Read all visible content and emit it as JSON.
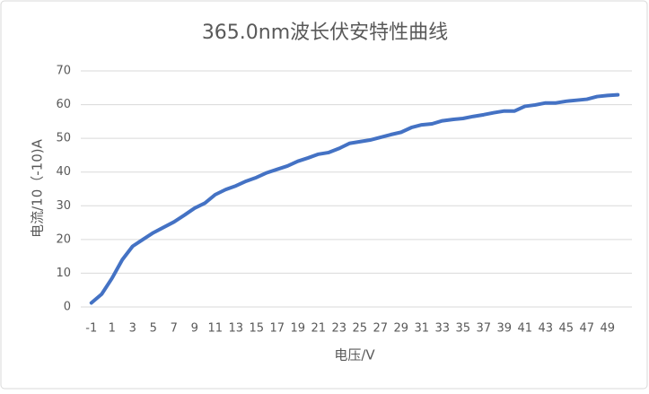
{
  "chart_data": {
    "type": "line",
    "title": "365.0nm波长伏安特性曲线",
    "x_label": "电压/V",
    "y_label": "电流/10（-10)A",
    "categories": [
      "-1",
      null,
      "1",
      null,
      "3",
      null,
      "5",
      null,
      "7",
      null,
      "9",
      null,
      "11",
      null,
      "13",
      null,
      "15",
      null,
      "17",
      null,
      "19",
      null,
      "21",
      null,
      "23",
      null,
      "25",
      null,
      "27",
      null,
      "29",
      null,
      "31",
      null,
      "33",
      null,
      "35",
      null,
      "37",
      null,
      "39",
      null,
      "41",
      null,
      "43",
      null,
      "45",
      null,
      "47",
      null,
      "49",
      null
    ],
    "series": [
      {
        "name": "365.0nm",
        "color": "#4472c4",
        "values": [
          1.2,
          3.8,
          8.5,
          14,
          18,
          20,
          22,
          23.6,
          25.2,
          27.2,
          29.3,
          30.8,
          33.3,
          34.8,
          35.9,
          37.3,
          38.4,
          39.8,
          40.8,
          41.8,
          43.2,
          44.2,
          45.3,
          45.8,
          47,
          48.5,
          49,
          49.5,
          50.3,
          51.1,
          51.8,
          53.2,
          54,
          54.3,
          55.2,
          55.6,
          55.9,
          56.5,
          57,
          57.6,
          58.1,
          58.1,
          59.5,
          59.9,
          60.5,
          60.5,
          61,
          61.3,
          61.6,
          62.4,
          62.7,
          62.9
        ]
      }
    ],
    "ylim": [
      0,
      70
    ],
    "yticks": [
      0,
      10,
      20,
      30,
      40,
      50,
      60,
      70
    ],
    "grid": true
  }
}
